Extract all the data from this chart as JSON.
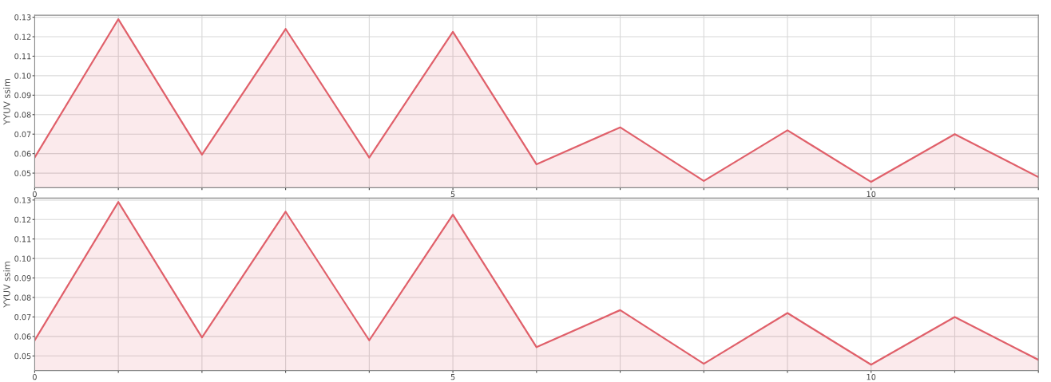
{
  "chart_data": [
    {
      "type": "area",
      "ylabel": "YYUV ssim",
      "x": [
        0,
        1,
        2,
        3,
        4,
        5,
        6,
        7,
        8,
        9,
        10,
        11,
        12
      ],
      "series": [
        {
          "color": "#e0606a",
          "values": [
            0.058,
            0.129,
            0.0595,
            0.124,
            0.058,
            0.1225,
            0.0545,
            0.0735,
            0.046,
            0.072,
            0.0455,
            0.07,
            0.048
          ]
        }
      ],
      "xlim": [
        0,
        12
      ],
      "ylim": [
        0.0425,
        0.131
      ],
      "xticks": [
        0,
        {
          "value": 1,
          "label": null
        },
        {
          "value": 2,
          "label": null
        },
        {
          "value": 3,
          "label": null
        },
        {
          "value": 4,
          "label": null
        },
        5,
        {
          "value": 6,
          "label": null
        },
        {
          "value": 7,
          "label": null
        },
        {
          "value": 8,
          "label": null
        },
        {
          "value": 9,
          "label": null
        },
        10,
        {
          "value": 11,
          "label": null
        },
        {
          "value": 12,
          "label": null
        }
      ],
      "yticks": [
        {
          "value": 0.05,
          "label": "0.05"
        },
        {
          "value": 0.06,
          "label": "0.06"
        },
        {
          "value": 0.07,
          "label": "0.07"
        },
        {
          "value": 0.08,
          "label": "0.08"
        },
        {
          "value": 0.09,
          "label": "0.09"
        },
        {
          "value": 0.1,
          "label": "0.10"
        },
        {
          "value": 0.11,
          "label": "0.11"
        },
        {
          "value": 0.12,
          "label": "0.12"
        },
        {
          "value": 0.13,
          "label": "0.13"
        }
      ],
      "grid": true,
      "marker": "none"
    },
    {
      "type": "area",
      "ylabel": "YYUV ssim",
      "x": [
        0,
        1,
        2,
        3,
        4,
        5,
        6,
        7,
        8,
        9,
        10,
        11,
        12
      ],
      "series": [
        {
          "color": "#e0606a",
          "values": [
            0.058,
            0.129,
            0.0595,
            0.124,
            0.058,
            0.1225,
            0.0545,
            0.0735,
            0.046,
            0.072,
            0.0455,
            0.07,
            0.048
          ]
        }
      ],
      "xlim": [
        0,
        12
      ],
      "ylim": [
        0.0425,
        0.131
      ],
      "xticks": [
        0,
        {
          "value": 1,
          "label": null
        },
        {
          "value": 2,
          "label": null
        },
        {
          "value": 3,
          "label": null
        },
        {
          "value": 4,
          "label": null
        },
        5,
        {
          "value": 6,
          "label": null
        },
        {
          "value": 7,
          "label": null
        },
        {
          "value": 8,
          "label": null
        },
        {
          "value": 9,
          "label": null
        },
        10,
        {
          "value": 11,
          "label": null
        },
        {
          "value": 12,
          "label": null
        }
      ],
      "yticks": [
        {
          "value": 0.05,
          "label": "0.05"
        },
        {
          "value": 0.06,
          "label": "0.06"
        },
        {
          "value": 0.07,
          "label": "0.07"
        },
        {
          "value": 0.08,
          "label": "0.08"
        },
        {
          "value": 0.09,
          "label": "0.09"
        },
        {
          "value": 0.1,
          "label": "0.10"
        },
        {
          "value": 0.11,
          "label": "0.11"
        },
        {
          "value": 0.12,
          "label": "0.12"
        },
        {
          "value": 0.13,
          "label": "0.13"
        }
      ],
      "grid": true,
      "marker": "none"
    }
  ]
}
